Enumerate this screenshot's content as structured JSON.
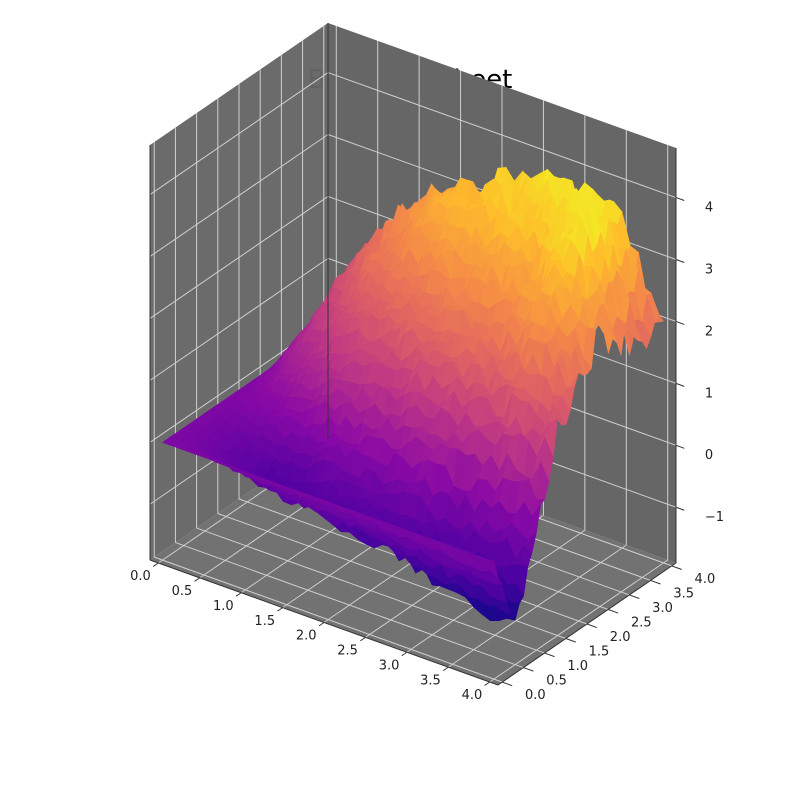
{
  "chart_data": {
    "type": "surface3d",
    "title": "Brownian Sheet",
    "xlabel": "",
    "ylabel": "",
    "zlabel": "",
    "colormap": "plasma",
    "pane_color": "#666666",
    "grid": true,
    "xlim": [
      -0.1,
      4.1
    ],
    "ylim": [
      -0.1,
      4.1
    ],
    "zlim": [
      -1.9,
      4.8
    ],
    "x_ticks": [
      "0.0",
      "0.5",
      "1.0",
      "1.5",
      "2.0",
      "2.5",
      "3.0",
      "3.5",
      "4.0"
    ],
    "y_ticks": [
      "0.0",
      "0.5",
      "1.0",
      "1.5",
      "2.0",
      "2.5",
      "3.0",
      "3.5",
      "4.0"
    ],
    "z_ticks": [
      "−1",
      "0",
      "1",
      "2",
      "3",
      "4"
    ],
    "x": [
      0,
      0.5,
      1.0,
      1.5,
      2.0,
      2.5,
      3.0,
      3.5,
      4.0
    ],
    "y": [
      0,
      0.5,
      1.0,
      1.5,
      2.0,
      2.5,
      3.0,
      3.5,
      4.0
    ],
    "z": [
      [
        0.0,
        0.0,
        0.0,
        0.0,
        0.0,
        0.0,
        0.0,
        0.0,
        0.0
      ],
      [
        0.0,
        -0.3,
        -0.4,
        0.1,
        0.5,
        0.9,
        1.3,
        1.5,
        1.6
      ],
      [
        0.0,
        -0.5,
        -0.6,
        0.3,
        1.0,
        1.6,
        2.0,
        2.4,
        2.6
      ],
      [
        0.0,
        -0.6,
        -0.4,
        0.6,
        1.4,
        2.0,
        2.5,
        2.9,
        3.0
      ],
      [
        0.0,
        -0.7,
        -0.3,
        0.8,
        1.7,
        2.3,
        2.8,
        3.2,
        3.3
      ],
      [
        0.0,
        -0.8,
        -0.2,
        1.0,
        1.9,
        2.5,
        3.0,
        3.4,
        3.5
      ],
      [
        0.0,
        -1.0,
        -0.3,
        1.1,
        2.0,
        2.6,
        3.1,
        3.5,
        3.6
      ],
      [
        0.0,
        -1.2,
        -0.2,
        1.3,
        2.4,
        3.0,
        3.7,
        3.9,
        3.4
      ],
      [
        0.0,
        -1.3,
        0.0,
        1.4,
        2.0,
        2.5,
        2.2,
        2.0,
        1.9
      ]
    ]
  }
}
